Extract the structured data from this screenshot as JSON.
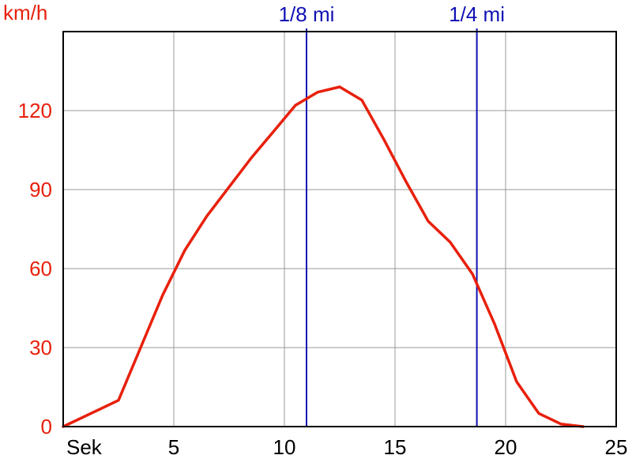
{
  "chart_data": {
    "type": "line",
    "ylabel": "km/h",
    "xlabel": "Sek",
    "xlim": [
      0,
      25
    ],
    "ylim": [
      0,
      150
    ],
    "x_ticks": [
      5,
      10,
      15,
      20,
      25
    ],
    "y_ticks": [
      0,
      30,
      60,
      90,
      120
    ],
    "grid": true,
    "colors": {
      "speed": "#e8200c",
      "markers": "#1010b4",
      "axis_y_text": "#e8200c",
      "axis_x_text": "#000000",
      "grid": "#999999"
    },
    "series": [
      {
        "x": [
          0,
          2.5,
          3.5,
          4.5,
          5.5,
          6.5,
          7.5,
          8.5,
          9.5,
          10.5,
          11.5,
          12.5,
          13.5,
          14.5,
          15.5,
          16.5,
          17.5,
          18.5,
          19.5,
          20.5,
          21.5,
          22.5,
          23.5
        ],
        "y": [
          0,
          10,
          30,
          50,
          67,
          80,
          91,
          102,
          112,
          122,
          127,
          129,
          124,
          109,
          93,
          78,
          70,
          58,
          39,
          17,
          5,
          1,
          0
        ]
      }
    ],
    "markers": [
      {
        "label": "1/8 mi",
        "x": 11.0
      },
      {
        "label": "1/4 mi",
        "x": 18.7
      }
    ]
  }
}
